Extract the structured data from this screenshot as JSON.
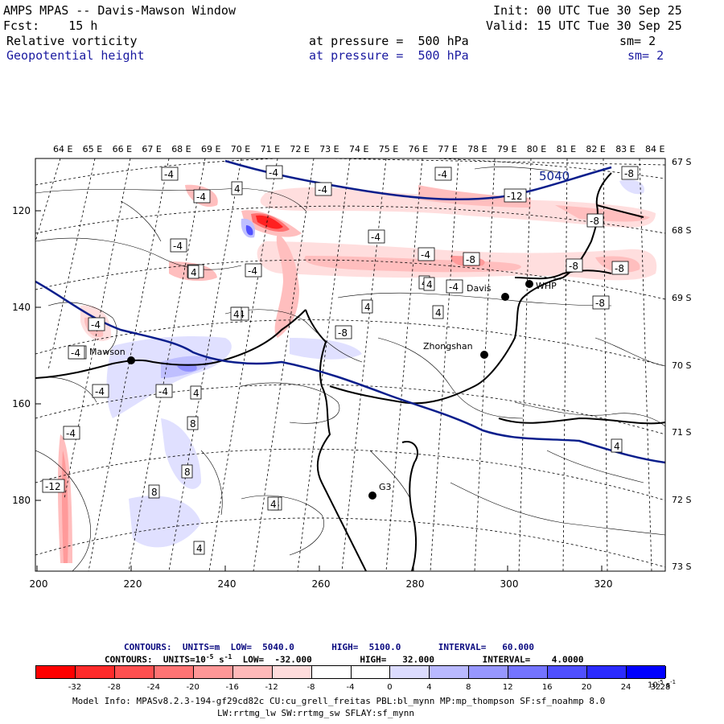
{
  "header": {
    "title": "AMPS MPAS -- Davis-Mawson Window",
    "fcst": "Fcst:    15 h",
    "init": "Init: 00 UTC Tue 30 Sep 25",
    "valid": "Valid: 15 UTC Tue 30 Sep 25",
    "field1": {
      "name": "Relative vorticity",
      "level": "at pressure =  500 hPa",
      "sm": "sm= 2"
    },
    "field2": {
      "name": "Geopotential height",
      "level": "at pressure =  500 hPa",
      "sm": "sm= 2"
    }
  },
  "map": {
    "lon_labels": [
      "64 E",
      "65 E",
      "66 E",
      "67 E",
      "68 E",
      "69 E",
      "70 E",
      "71 E",
      "72 E",
      "73 E",
      "74 E",
      "75 E",
      "76 E",
      "77 E",
      "78 E",
      "79 E",
      "80 E",
      "81 E",
      "82 E",
      "83 E",
      "84 E"
    ],
    "lat_labels": [
      "67 S",
      "68 S",
      "69 S",
      "70 S",
      "71 S",
      "72 S",
      "73 S"
    ],
    "x_ticks": [
      "200",
      "220",
      "240",
      "260",
      "280",
      "300",
      "320"
    ],
    "y_ticks": [
      "120",
      "140",
      "160",
      "180"
    ],
    "height_label": "5040",
    "stations": [
      {
        "name": "Mawson"
      },
      {
        "name": "Davis"
      },
      {
        "name": "WHP"
      },
      {
        "name": "Zhongshan"
      },
      {
        "name": "G3"
      }
    ],
    "contour_labels": [
      "-4",
      "-4",
      "-4",
      "-4",
      "-8",
      "-4",
      "4",
      "-4",
      "-4",
      "-4",
      "4",
      "-8",
      "-4",
      "-8",
      "-8",
      "-12",
      "-8",
      "-4",
      "-4",
      "-8",
      "-4",
      "-4",
      "4",
      "4",
      "-4",
      "-8",
      "-4",
      "-4",
      "4",
      "-12",
      "8",
      "8",
      "8",
      "8",
      "-4",
      "4",
      "4",
      "4",
      "4",
      "4",
      "-4",
      "4"
    ],
    "colors": {
      "coast": "#000000",
      "height": "#0a1e8c"
    }
  },
  "footer": {
    "contours1": "CONTOURS:  UNITS=m  LOW=  5040.0       HIGH=  5100.0       INTERVAL=   60.000",
    "contours2": "CONTOURS:  UNITS=10",
    "contours2_exp": "-5",
    "contours2_s": " s",
    "contours2_sexp": "-1",
    "contours2_rest": "  LOW=  -32.000         HIGH=   32.000         INTERVAL=    4.0000",
    "colorbar_labels": [
      "-32",
      "-28",
      "-24",
      "-20",
      "-16",
      "-12",
      "-8",
      "-4",
      "0",
      "4",
      "8",
      "12",
      "16",
      "20",
      "24",
      "28",
      "32"
    ],
    "colorbar_unit": "10",
    "colorbar_unit_exp": "-5",
    "colorbar_unit_s": " s",
    "colorbar_unit_sexp": "-1",
    "colorbar_colors": [
      "#ff0000",
      "#ff2b2b",
      "#ff5050",
      "#ff7474",
      "#ff9797",
      "#ffb9b9",
      "#ffdcdc",
      "#ffffff",
      "#ffffff",
      "#dcdcff",
      "#b9b9ff",
      "#9797ff",
      "#7474ff",
      "#5050ff",
      "#2b2bff",
      "#0000ff"
    ],
    "model_info_1": "Model Info: MPASv8.2.3-194-gf29cd82c CU:cu_grell_freitas PBL:bl_mynn MP:mp_thompson SF:sf_noahmp 8.0",
    "model_info_2": "LW:rrtmg_lw SW:rrtmg_sw SFLAY:sf_mynn"
  }
}
